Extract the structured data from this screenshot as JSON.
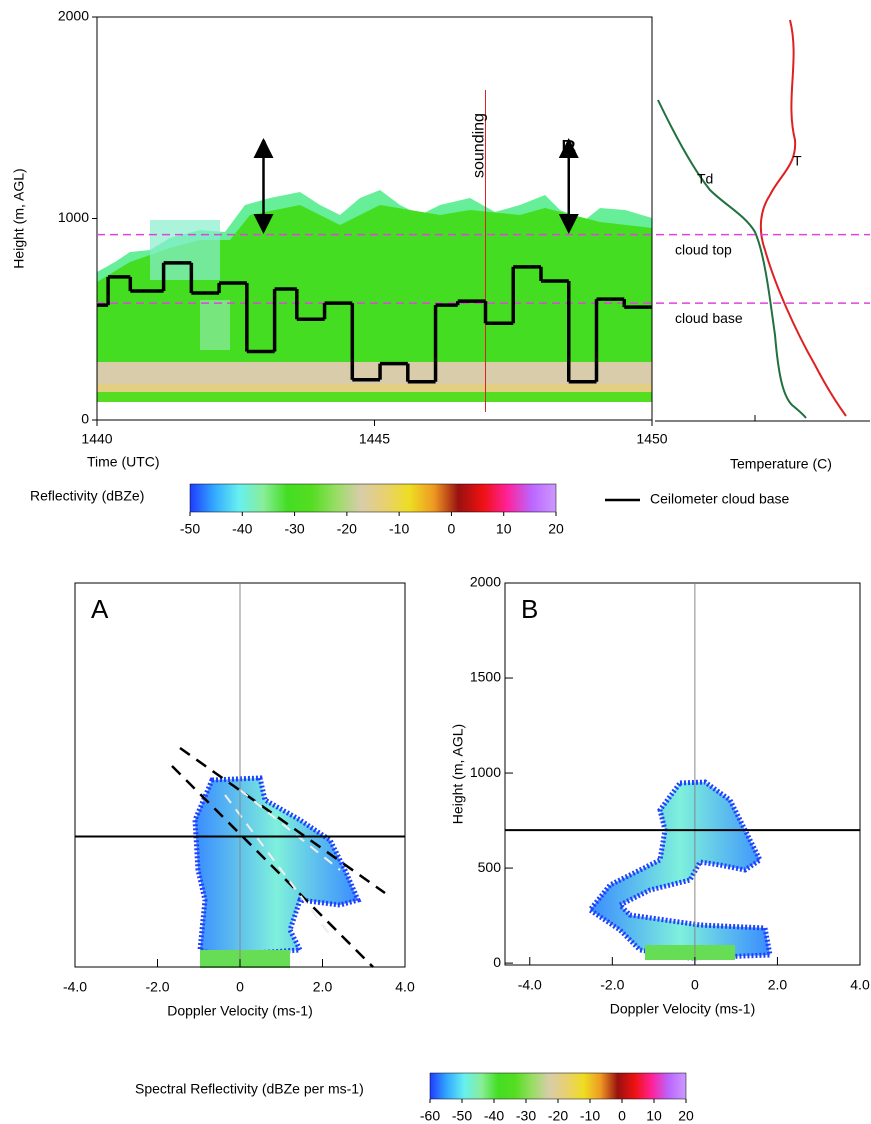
{
  "chart_data": [
    {
      "type": "step",
      "y_label": "Height (m, AGL)",
      "x_label": "Time (UTC)",
      "x": [
        1440,
        1440.2,
        1440.6,
        1441.2,
        1441.7,
        1442.2,
        1442.7,
        1443.2,
        1443.6,
        1444.1,
        1444.6,
        1445.1,
        1445.6,
        1446.1,
        1446.5,
        1447.0,
        1447.5,
        1448.0,
        1448.5,
        1449.0,
        1449.5
      ],
      "series": [
        {
          "name": "Ceilometer cloud base",
          "color": "#000000",
          "values": [
            570,
            710,
            640,
            780,
            630,
            680,
            340,
            650,
            500,
            580,
            200,
            280,
            190,
            570,
            590,
            480,
            760,
            690,
            190,
            600,
            560
          ]
        }
      ],
      "xlim": [
        1440,
        1450
      ],
      "ylim": [
        0,
        2000
      ],
      "xticks": [
        1440,
        1445,
        1450
      ],
      "yticks": [
        0,
        1000,
        2000
      ],
      "annotations": [
        {
          "text": "A",
          "x": 1443.0
        },
        {
          "text": "B",
          "x": 1448.5
        }
      ],
      "sounding_line": {
        "text": "sounding",
        "x": 1447.0,
        "color": "#dd2222"
      },
      "reference_lines": [
        {
          "label": "cloud top",
          "value": 920,
          "color": "#dd44dd"
        },
        {
          "label": "cloud base",
          "value": 580,
          "color": "#dd44dd"
        }
      ]
    },
    {
      "type": "spectrum",
      "title": "A",
      "x_label": "Doppler Velocity (ms-1)",
      "xlim": [
        -4,
        4
      ],
      "xticks": [
        {
          "value": -4,
          "label": "-4.0"
        },
        {
          "value": -2,
          "label": "-2.0"
        },
        0,
        {
          "value": 2,
          "label": "2.0"
        },
        {
          "value": 4,
          "label": "4.0"
        }
      ],
      "ylim": [
        0,
        2000
      ],
      "cloud_base_line": 680
    },
    {
      "type": "spectrum",
      "title": "B",
      "x_label": "Doppler Velocity (ms-1)",
      "y_label": "Height (m, AGL)",
      "xlim": [
        -4.6,
        4
      ],
      "xticks": [
        {
          "value": -4,
          "label": "-4.0"
        },
        {
          "value": -2,
          "label": "-2.0"
        },
        0,
        {
          "value": 2,
          "label": "2.0"
        },
        {
          "value": 4,
          "label": "4.0"
        }
      ],
      "ylim": [
        -10,
        2000
      ],
      "yticks": [
        0,
        500,
        1000,
        1500,
        2000
      ],
      "cloud_base_line": 700
    }
  ],
  "sounding": {
    "x_label": "Temperature (C)",
    "t_label": "T",
    "td_label": "Td"
  },
  "reflectivity_colorbar": {
    "label": "Reflectivity (dBZe)",
    "lim": [
      -50,
      20
    ],
    "ticks": [
      -50,
      -40,
      -30,
      -20,
      -10,
      0,
      10,
      20
    ],
    "colors": [
      "#1e3cff",
      "#33aaff",
      "#66f0f0",
      "#88ee99",
      "#44dd22",
      "#55dd22",
      "#99dd66",
      "#d8ccaa",
      "#e8d070",
      "#eedd22",
      "#ee9922",
      "#991111",
      "#ee1111",
      "#ff2299",
      "#bb66ff",
      "#cc99ff"
    ]
  },
  "spectral_colorbar": {
    "label": "Spectral Reflectivity (dBZe per ms-1)",
    "lim": [
      -60,
      20
    ],
    "ticks": [
      -60,
      -50,
      -40,
      -30,
      -20,
      -10,
      0,
      10,
      20
    ],
    "colors": [
      "#1e3cff",
      "#33aaff",
      "#66f0f0",
      "#88ee99",
      "#44dd22",
      "#55dd22",
      "#99dd66",
      "#d8ccaa",
      "#e8d070",
      "#eedd22",
      "#ee9922",
      "#991111",
      "#ee1111",
      "#ff2299",
      "#bb66ff",
      "#cc99ff"
    ]
  }
}
